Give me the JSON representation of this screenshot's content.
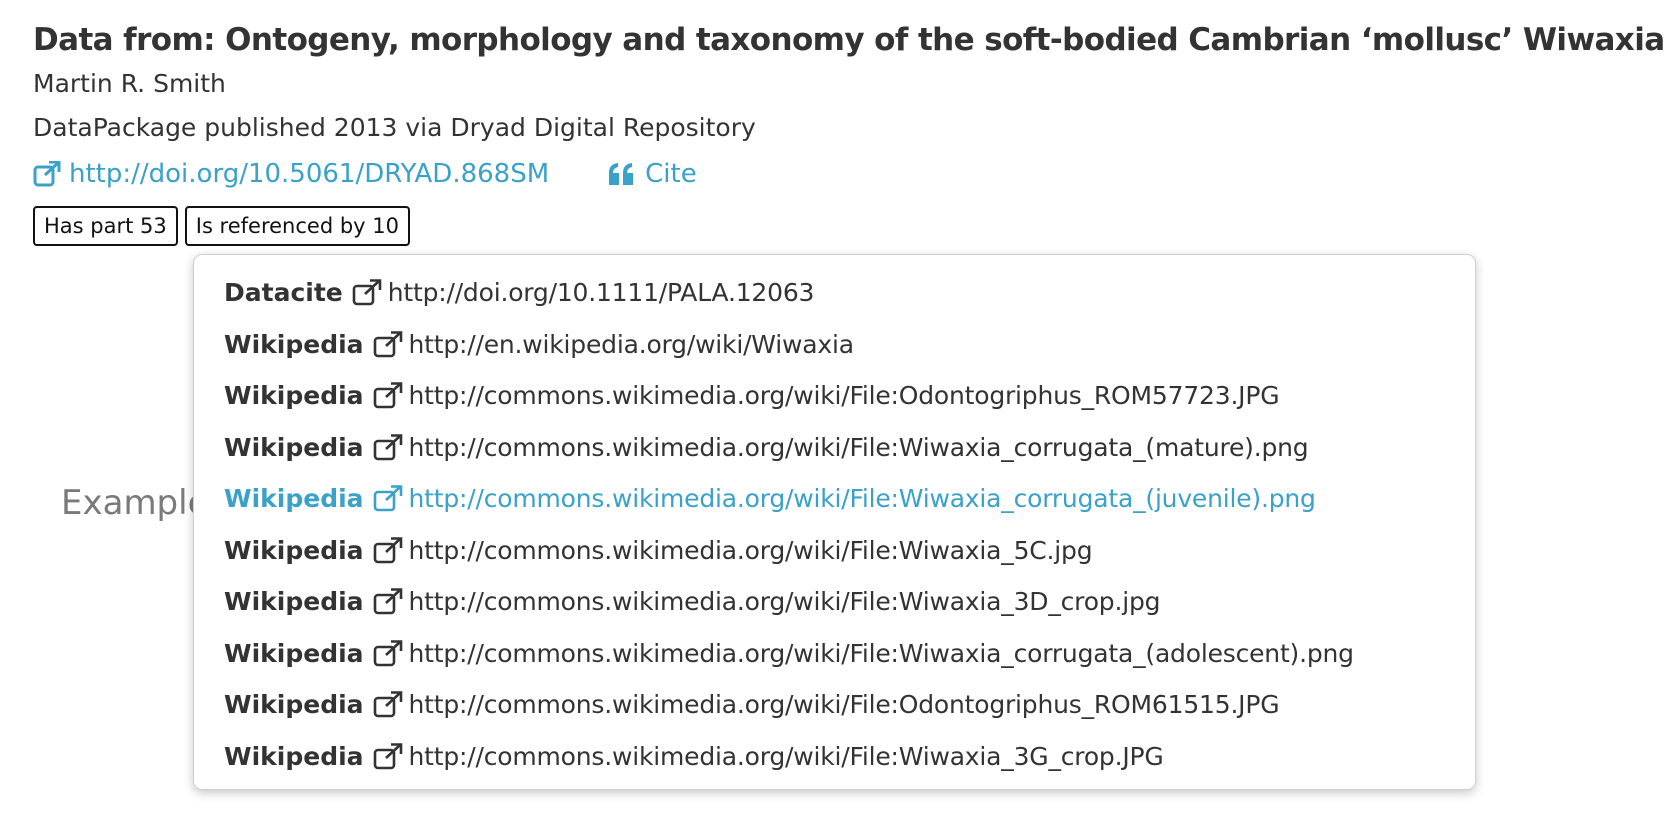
{
  "dataset": {
    "title": "Data from: Ontogeny, morphology and taxonomy of the soft-bodied Cambrian ‘mollusc’ Wiwaxia",
    "author": "Martin R. Smith",
    "published": "DataPackage published 2013 via Dryad Digital Repository",
    "doi_link": "http://doi.org/10.5061/DRYAD.868SM",
    "cite_label": "Cite"
  },
  "badges": {
    "has_part": "Has part 53",
    "referenced_by": "Is referenced by 10"
  },
  "background_text": "Example",
  "colors": {
    "link": "#3aa1c9",
    "text": "#333333",
    "muted": "#7a7a7a"
  },
  "icons": {
    "external_link": "external-link-icon",
    "cite": "quote-icon"
  },
  "popover": {
    "items": [
      {
        "source": "Datacite",
        "url": "http://doi.org/10.1111/PALA.12063",
        "highlighted": false
      },
      {
        "source": "Wikipedia",
        "url": "http://en.wikipedia.org/wiki/Wiwaxia",
        "highlighted": false
      },
      {
        "source": "Wikipedia",
        "url": "http://commons.wikimedia.org/wiki/File:Odontogriphus_ROM57723.JPG",
        "highlighted": false
      },
      {
        "source": "Wikipedia",
        "url": "http://commons.wikimedia.org/wiki/File:Wiwaxia_corrugata_(mature).png",
        "highlighted": false
      },
      {
        "source": "Wikipedia",
        "url": "http://commons.wikimedia.org/wiki/File:Wiwaxia_corrugata_(juvenile).png",
        "highlighted": true
      },
      {
        "source": "Wikipedia",
        "url": "http://commons.wikimedia.org/wiki/File:Wiwaxia_5C.jpg",
        "highlighted": false
      },
      {
        "source": "Wikipedia",
        "url": "http://commons.wikimedia.org/wiki/File:Wiwaxia_3D_crop.jpg",
        "highlighted": false
      },
      {
        "source": "Wikipedia",
        "url": "http://commons.wikimedia.org/wiki/File:Wiwaxia_corrugata_(adolescent).png",
        "highlighted": false
      },
      {
        "source": "Wikipedia",
        "url": "http://commons.wikimedia.org/wiki/File:Odontogriphus_ROM61515.JPG",
        "highlighted": false
      },
      {
        "source": "Wikipedia",
        "url": "http://commons.wikimedia.org/wiki/File:Wiwaxia_3G_crop.JPG",
        "highlighted": false
      }
    ]
  }
}
